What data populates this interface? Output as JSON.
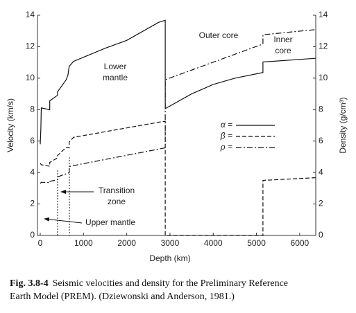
{
  "chart_data": {
    "type": "line",
    "xlabel": "Depth (km)",
    "ylabel": "Velocity (km/s)",
    "y2label": "Density (g/cm³)",
    "xlim": [
      -64,
      6371
    ],
    "xticks": [
      0,
      1000,
      2000,
      3000,
      4000,
      5000,
      6000
    ],
    "ylim": [
      0,
      14
    ],
    "yticks": [
      0,
      2,
      4,
      6,
      8,
      10,
      12,
      14
    ],
    "y2lim": [
      0,
      14
    ],
    "y2ticks": [
      0,
      2,
      4,
      6,
      8,
      10,
      12,
      14
    ],
    "series": [
      {
        "name": "α =",
        "color": "#111111",
        "dash": "solid",
        "x": [
          0,
          15,
          24,
          220,
          220,
          400,
          400,
          600,
          640,
          670,
          771,
          1500,
          2000,
          2741,
          2891,
          2891,
          3500,
          4000,
          4500,
          5150,
          5150,
          6371
        ],
        "values": [
          5.8,
          6.8,
          8.11,
          7.99,
          8.56,
          8.91,
          9.13,
          9.9,
          10.2,
          10.75,
          11.07,
          11.9,
          12.4,
          13.55,
          13.68,
          8.06,
          9.0,
          9.6,
          10.0,
          10.36,
          11.03,
          11.26
        ]
      },
      {
        "name": "β =",
        "color": "#111111",
        "dash": "dashed",
        "x": [
          0,
          24,
          220,
          220,
          400,
          400,
          600,
          670,
          670,
          771,
          2741,
          2891,
          2891,
          5150,
          5150,
          6371
        ],
        "values": [
          4.6,
          4.49,
          4.4,
          4.64,
          4.93,
          5.08,
          5.6,
          5.57,
          5.94,
          6.24,
          7.2,
          7.26,
          0,
          0,
          3.5,
          3.67
        ]
      },
      {
        "name": "ρ =",
        "color": "#111111",
        "dash": "dashdot",
        "x": [
          0,
          24,
          220,
          220,
          400,
          400,
          670,
          670,
          771,
          2891,
          2891,
          5150,
          5150,
          6371
        ],
        "values": [
          3.3,
          3.38,
          3.36,
          3.44,
          3.54,
          3.72,
          3.99,
          4.38,
          4.44,
          5.57,
          9.9,
          12.17,
          12.76,
          13.09
        ],
        "axis": "y2"
      }
    ],
    "annotations": [
      {
        "lines": [
          "Lower",
          "mantle"
        ]
      },
      {
        "lines": [
          "Outer core"
        ]
      },
      {
        "lines": [
          "Inner",
          "core"
        ]
      },
      {
        "lines": [
          "Transition",
          "zone"
        ]
      },
      {
        "lines": [
          "Upper mantle"
        ]
      }
    ]
  },
  "caption": {
    "label": "Fig. 3.8-4",
    "lines": [
      "Seismic velocities and density for the Preliminary Reference",
      "Earth Model (PREM). (Dziewonski and Anderson, 1981.)"
    ]
  }
}
